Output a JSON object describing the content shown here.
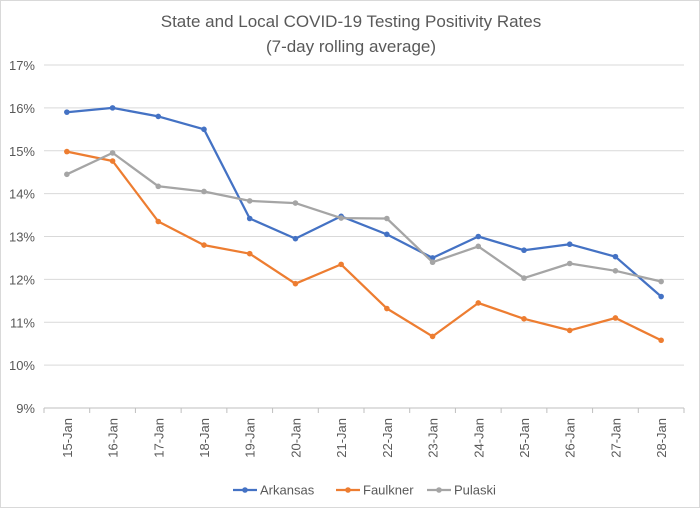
{
  "chart_data": {
    "type": "line",
    "title": "State and Local COVID-19 Testing Positivity Rates",
    "subtitle": "(7-day rolling average)",
    "xlabel": "",
    "ylabel": "",
    "categories": [
      "15-Jan",
      "16-Jan",
      "17-Jan",
      "18-Jan",
      "19-Jan",
      "20-Jan",
      "21-Jan",
      "22-Jan",
      "23-Jan",
      "24-Jan",
      "25-Jan",
      "26-Jan",
      "27-Jan",
      "28-Jan"
    ],
    "ylim": [
      9,
      17
    ],
    "yticks": [
      9,
      10,
      11,
      12,
      13,
      14,
      15,
      16,
      17
    ],
    "ytick_labels": [
      "9%",
      "10%",
      "11%",
      "12%",
      "13%",
      "14%",
      "15%",
      "16%",
      "17%"
    ],
    "grid": true,
    "legend": "bottom",
    "series": [
      {
        "name": "Arkansas",
        "color": "#4472C4",
        "values": [
          15.9,
          16.0,
          15.8,
          15.5,
          13.42,
          12.95,
          13.47,
          13.05,
          12.5,
          13.0,
          12.68,
          12.82,
          12.53,
          11.6
        ]
      },
      {
        "name": "Faulkner",
        "color": "#ED7D31",
        "values": [
          14.98,
          14.76,
          13.35,
          12.8,
          12.6,
          11.9,
          12.35,
          11.32,
          10.67,
          11.45,
          11.08,
          10.81,
          11.1,
          10.58
        ]
      },
      {
        "name": "Pulaski",
        "color": "#A5A5A5",
        "values": [
          14.45,
          14.95,
          14.17,
          14.05,
          13.83,
          13.78,
          13.43,
          13.42,
          12.4,
          12.77,
          12.03,
          12.37,
          12.2,
          11.95
        ]
      }
    ]
  }
}
